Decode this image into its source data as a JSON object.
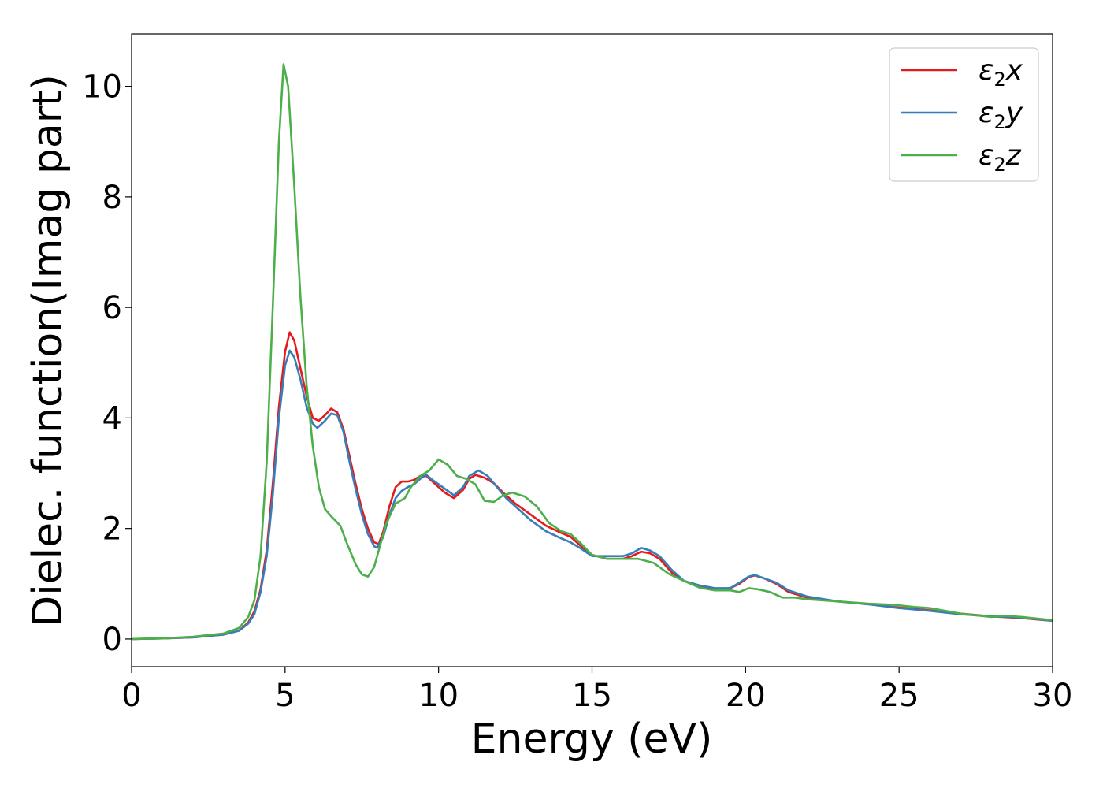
{
  "chart_data": {
    "type": "line",
    "title": "",
    "xlabel": "Energy (eV)",
    "ylabel": "Dielec. function(Imag part)",
    "xlim": [
      0,
      30
    ],
    "ylim": [
      -0.5,
      10.95
    ],
    "xticks": [
      0,
      5,
      10,
      15,
      20,
      25,
      30
    ],
    "yticks": [
      0,
      2,
      4,
      6,
      8,
      10
    ],
    "grid": false,
    "legend_position": "top-right",
    "series": [
      {
        "name": "ε2x",
        "legend_base": "ε",
        "legend_sub": "2",
        "legend_var": "x",
        "color": "#e41a1c",
        "points": [
          [
            0,
            0.0
          ],
          [
            1,
            0.01
          ],
          [
            2,
            0.03
          ],
          [
            3,
            0.08
          ],
          [
            3.5,
            0.15
          ],
          [
            3.8,
            0.3
          ],
          [
            4.0,
            0.5
          ],
          [
            4.2,
            0.9
          ],
          [
            4.4,
            1.6
          ],
          [
            4.6,
            2.8
          ],
          [
            4.8,
            4.2
          ],
          [
            5.0,
            5.2
          ],
          [
            5.15,
            5.55
          ],
          [
            5.3,
            5.4
          ],
          [
            5.5,
            4.9
          ],
          [
            5.7,
            4.4
          ],
          [
            5.9,
            4.0
          ],
          [
            6.1,
            3.95
          ],
          [
            6.3,
            4.05
          ],
          [
            6.5,
            4.17
          ],
          [
            6.7,
            4.1
          ],
          [
            6.9,
            3.8
          ],
          [
            7.1,
            3.3
          ],
          [
            7.3,
            2.8
          ],
          [
            7.5,
            2.35
          ],
          [
            7.7,
            2.0
          ],
          [
            7.9,
            1.75
          ],
          [
            8.05,
            1.72
          ],
          [
            8.2,
            1.95
          ],
          [
            8.4,
            2.4
          ],
          [
            8.6,
            2.75
          ],
          [
            8.8,
            2.85
          ],
          [
            9.0,
            2.85
          ],
          [
            9.2,
            2.88
          ],
          [
            9.4,
            2.95
          ],
          [
            9.6,
            2.95
          ],
          [
            9.8,
            2.85
          ],
          [
            10.0,
            2.75
          ],
          [
            10.2,
            2.65
          ],
          [
            10.5,
            2.55
          ],
          [
            10.8,
            2.7
          ],
          [
            11.0,
            2.9
          ],
          [
            11.2,
            2.97
          ],
          [
            11.5,
            2.92
          ],
          [
            11.8,
            2.82
          ],
          [
            12.1,
            2.65
          ],
          [
            12.5,
            2.45
          ],
          [
            13.0,
            2.25
          ],
          [
            13.5,
            2.05
          ],
          [
            14.0,
            1.92
          ],
          [
            14.3,
            1.85
          ],
          [
            14.6,
            1.7
          ],
          [
            15.0,
            1.52
          ],
          [
            15.5,
            1.45
          ],
          [
            16.0,
            1.45
          ],
          [
            16.3,
            1.5
          ],
          [
            16.6,
            1.58
          ],
          [
            16.9,
            1.55
          ],
          [
            17.2,
            1.45
          ],
          [
            17.6,
            1.2
          ],
          [
            18.0,
            1.05
          ],
          [
            18.5,
            0.95
          ],
          [
            19.0,
            0.9
          ],
          [
            19.5,
            0.92
          ],
          [
            19.8,
            1.0
          ],
          [
            20.1,
            1.12
          ],
          [
            20.3,
            1.15
          ],
          [
            20.6,
            1.1
          ],
          [
            21.0,
            1.0
          ],
          [
            21.4,
            0.85
          ],
          [
            22.0,
            0.75
          ],
          [
            23.0,
            0.68
          ],
          [
            24.0,
            0.63
          ],
          [
            25.0,
            0.57
          ],
          [
            26.0,
            0.52
          ],
          [
            27.0,
            0.46
          ],
          [
            28.0,
            0.41
          ],
          [
            29.0,
            0.38
          ],
          [
            30.0,
            0.33
          ]
        ]
      },
      {
        "name": "ε2y",
        "legend_base": "ε",
        "legend_sub": "2",
        "legend_var": "y",
        "color": "#377eb8",
        "points": [
          [
            0,
            0.0
          ],
          [
            1,
            0.01
          ],
          [
            2,
            0.03
          ],
          [
            3,
            0.08
          ],
          [
            3.5,
            0.15
          ],
          [
            3.8,
            0.28
          ],
          [
            4.0,
            0.45
          ],
          [
            4.2,
            0.85
          ],
          [
            4.4,
            1.5
          ],
          [
            4.6,
            2.6
          ],
          [
            4.8,
            4.0
          ],
          [
            5.0,
            4.95
          ],
          [
            5.15,
            5.22
          ],
          [
            5.3,
            5.1
          ],
          [
            5.5,
            4.7
          ],
          [
            5.7,
            4.2
          ],
          [
            5.9,
            3.9
          ],
          [
            6.05,
            3.82
          ],
          [
            6.3,
            3.95
          ],
          [
            6.5,
            4.08
          ],
          [
            6.7,
            4.05
          ],
          [
            6.9,
            3.75
          ],
          [
            7.1,
            3.2
          ],
          [
            7.3,
            2.7
          ],
          [
            7.5,
            2.25
          ],
          [
            7.7,
            1.9
          ],
          [
            7.9,
            1.68
          ],
          [
            8.0,
            1.65
          ],
          [
            8.2,
            1.85
          ],
          [
            8.4,
            2.25
          ],
          [
            8.6,
            2.55
          ],
          [
            8.8,
            2.68
          ],
          [
            9.0,
            2.75
          ],
          [
            9.2,
            2.8
          ],
          [
            9.4,
            2.9
          ],
          [
            9.6,
            2.97
          ],
          [
            9.8,
            2.88
          ],
          [
            10.0,
            2.8
          ],
          [
            10.2,
            2.72
          ],
          [
            10.5,
            2.6
          ],
          [
            10.8,
            2.75
          ],
          [
            11.0,
            2.95
          ],
          [
            11.3,
            3.05
          ],
          [
            11.6,
            2.95
          ],
          [
            11.9,
            2.75
          ],
          [
            12.2,
            2.55
          ],
          [
            12.6,
            2.35
          ],
          [
            13.0,
            2.15
          ],
          [
            13.5,
            1.95
          ],
          [
            14.0,
            1.82
          ],
          [
            14.3,
            1.75
          ],
          [
            14.6,
            1.65
          ],
          [
            15.0,
            1.5
          ],
          [
            15.5,
            1.5
          ],
          [
            16.0,
            1.5
          ],
          [
            16.3,
            1.55
          ],
          [
            16.6,
            1.65
          ],
          [
            16.9,
            1.6
          ],
          [
            17.2,
            1.5
          ],
          [
            17.6,
            1.25
          ],
          [
            18.0,
            1.05
          ],
          [
            18.5,
            0.97
          ],
          [
            19.0,
            0.92
          ],
          [
            19.5,
            0.92
          ],
          [
            19.8,
            1.02
          ],
          [
            20.1,
            1.13
          ],
          [
            20.3,
            1.16
          ],
          [
            20.6,
            1.1
          ],
          [
            21.0,
            1.02
          ],
          [
            21.4,
            0.88
          ],
          [
            22.0,
            0.77
          ],
          [
            23.0,
            0.68
          ],
          [
            24.0,
            0.63
          ],
          [
            25.0,
            0.56
          ],
          [
            26.0,
            0.51
          ],
          [
            27.0,
            0.45
          ],
          [
            28.0,
            0.41
          ],
          [
            29.0,
            0.39
          ],
          [
            30.0,
            0.33
          ]
        ]
      },
      {
        "name": "ε2z",
        "legend_base": "ε",
        "legend_sub": "2",
        "legend_var": "z",
        "color": "#4daf4a",
        "points": [
          [
            0,
            0.0
          ],
          [
            1,
            0.01
          ],
          [
            2,
            0.04
          ],
          [
            3,
            0.1
          ],
          [
            3.5,
            0.2
          ],
          [
            3.8,
            0.4
          ],
          [
            4.0,
            0.7
          ],
          [
            4.2,
            1.5
          ],
          [
            4.4,
            3.2
          ],
          [
            4.6,
            6.0
          ],
          [
            4.8,
            9.0
          ],
          [
            4.95,
            10.4
          ],
          [
            5.1,
            10.0
          ],
          [
            5.3,
            8.2
          ],
          [
            5.5,
            6.2
          ],
          [
            5.7,
            4.6
          ],
          [
            5.9,
            3.5
          ],
          [
            6.1,
            2.75
          ],
          [
            6.3,
            2.35
          ],
          [
            6.5,
            2.22
          ],
          [
            6.8,
            2.05
          ],
          [
            7.0,
            1.75
          ],
          [
            7.3,
            1.35
          ],
          [
            7.5,
            1.17
          ],
          [
            7.7,
            1.13
          ],
          [
            7.9,
            1.3
          ],
          [
            8.1,
            1.7
          ],
          [
            8.3,
            2.1
          ],
          [
            8.6,
            2.45
          ],
          [
            8.9,
            2.55
          ],
          [
            9.1,
            2.75
          ],
          [
            9.4,
            2.95
          ],
          [
            9.7,
            3.05
          ],
          [
            10.0,
            3.25
          ],
          [
            10.3,
            3.15
          ],
          [
            10.6,
            2.95
          ],
          [
            10.9,
            2.9
          ],
          [
            11.2,
            2.8
          ],
          [
            11.5,
            2.5
          ],
          [
            11.8,
            2.48
          ],
          [
            12.1,
            2.6
          ],
          [
            12.4,
            2.65
          ],
          [
            12.8,
            2.58
          ],
          [
            13.2,
            2.4
          ],
          [
            13.6,
            2.1
          ],
          [
            14.0,
            1.95
          ],
          [
            14.3,
            1.9
          ],
          [
            14.6,
            1.75
          ],
          [
            15.0,
            1.52
          ],
          [
            15.5,
            1.45
          ],
          [
            16.0,
            1.45
          ],
          [
            16.5,
            1.45
          ],
          [
            17.0,
            1.38
          ],
          [
            17.5,
            1.18
          ],
          [
            18.0,
            1.05
          ],
          [
            18.5,
            0.93
          ],
          [
            19.0,
            0.88
          ],
          [
            19.5,
            0.88
          ],
          [
            19.8,
            0.85
          ],
          [
            20.1,
            0.92
          ],
          [
            20.4,
            0.9
          ],
          [
            20.8,
            0.85
          ],
          [
            21.2,
            0.75
          ],
          [
            21.6,
            0.75
          ],
          [
            22.0,
            0.72
          ],
          [
            23.0,
            0.68
          ],
          [
            24.0,
            0.64
          ],
          [
            24.8,
            0.62
          ],
          [
            25.5,
            0.58
          ],
          [
            26.0,
            0.56
          ],
          [
            27.0,
            0.46
          ],
          [
            28.0,
            0.4
          ],
          [
            28.5,
            0.42
          ],
          [
            29.0,
            0.4
          ],
          [
            30.0,
            0.34
          ]
        ]
      }
    ]
  }
}
